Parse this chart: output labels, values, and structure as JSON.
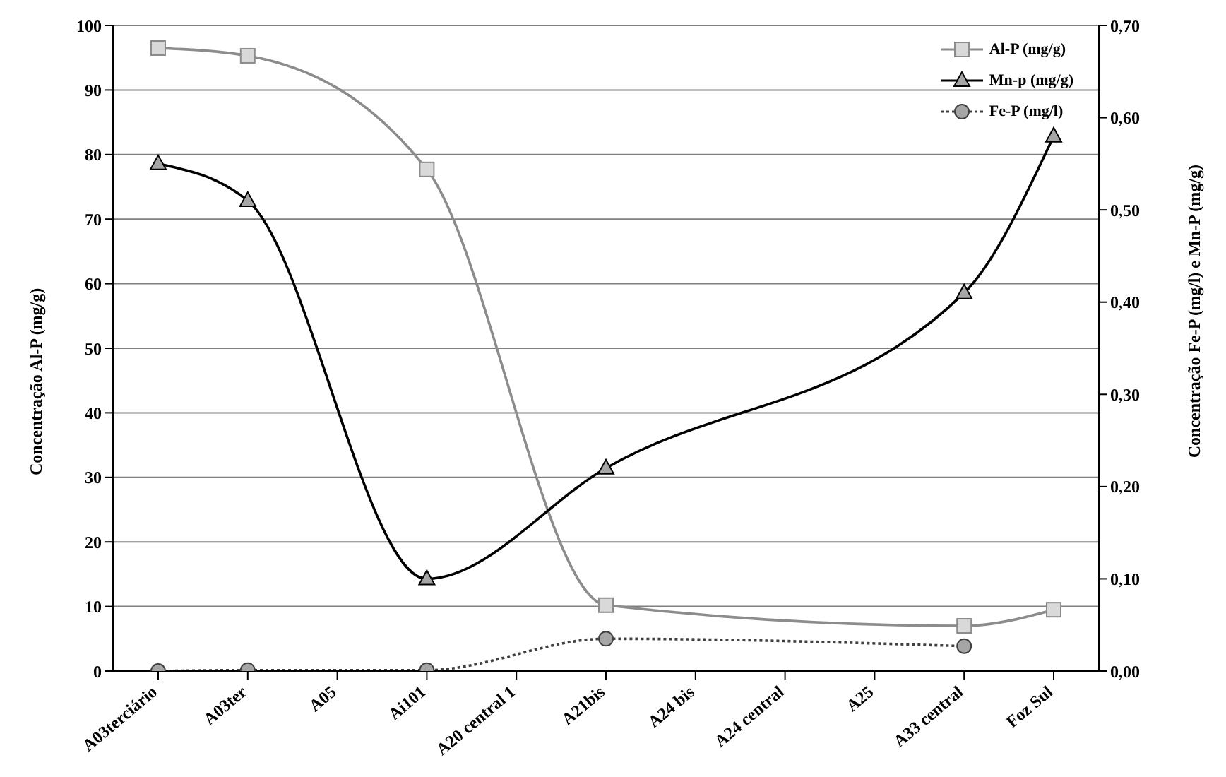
{
  "chart_data": {
    "type": "line",
    "ylabel": "Concentração Al-P (mg/g)",
    "y2label": "Concentração Fe-P (mg/l) e Mn-P (mg/g)",
    "categories": [
      "A03terciário",
      "A03ter",
      "A05",
      "Ai101",
      "A20 central 1",
      "A21bis",
      "A24 bis",
      "A24 central",
      "A25",
      "A33 central",
      "Foz Sul"
    ],
    "series": [
      {
        "name": "Al-P (mg/g)",
        "color": "#8c8c8c",
        "marker": "square",
        "line_style": "solid",
        "values": [
          96.5,
          95.3,
          null,
          77.7,
          null,
          10.2,
          null,
          null,
          null,
          7,
          9.5
        ]
      },
      {
        "name": "Mn-p (mg/g)",
        "color": "#000000",
        "marker": "triangle",
        "line_style": "solid",
        "axis": "y2",
        "values": [
          0.55,
          0.51,
          null,
          0.1,
          null,
          0.22,
          null,
          null,
          null,
          0.41,
          0.58
        ]
      },
      {
        "name": "Fe-P (mg/l)",
        "color": "#404040",
        "marker": "circle",
        "line_style": "dotted",
        "axis": "y2",
        "values": [
          0,
          0.001,
          null,
          0.001,
          null,
          0.035,
          null,
          null,
          null,
          0.027,
          null
        ]
      }
    ],
    "ylim": [
      0,
      100
    ],
    "yticks": [
      0,
      10,
      20,
      30,
      40,
      50,
      60,
      70,
      80,
      90,
      100
    ],
    "y2lim": [
      0,
      0.7
    ],
    "y2ticks": [
      {
        "value": 0,
        "label": "0,00"
      },
      {
        "value": 0.1,
        "label": "0,10"
      },
      {
        "value": 0.2,
        "label": "0,20"
      },
      {
        "value": 0.3,
        "label": "0,30"
      },
      {
        "value": 0.4,
        "label": "0,40"
      },
      {
        "value": 0.5,
        "label": "0,50"
      },
      {
        "value": 0.6,
        "label": "0,60"
      },
      {
        "value": 0.7,
        "label": "0,70"
      }
    ],
    "grid": "y",
    "legend": "top right"
  }
}
